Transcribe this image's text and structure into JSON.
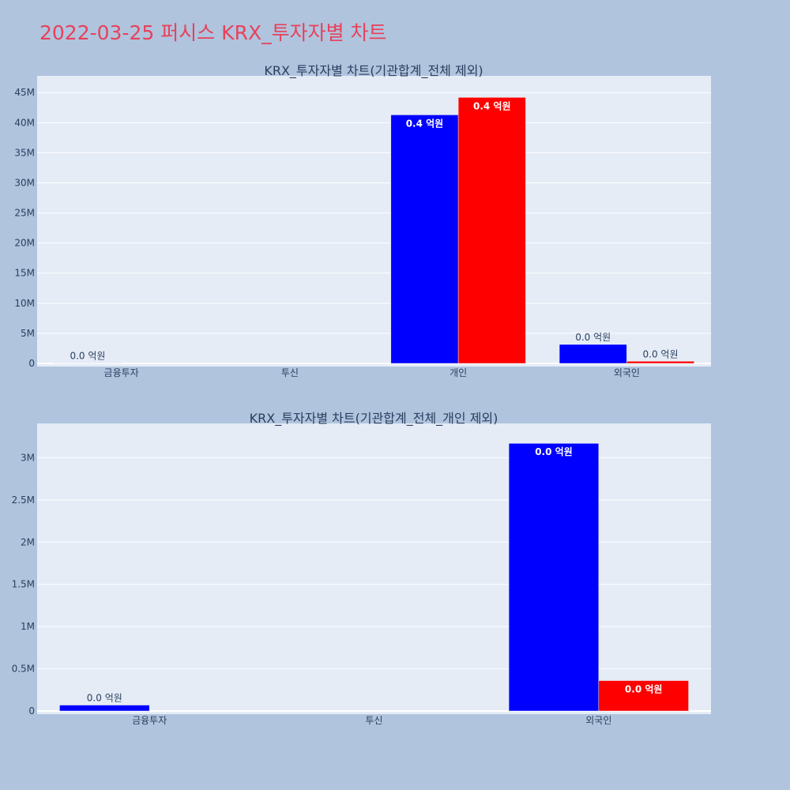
{
  "title": "2022-03-25 퍼시스 KRX_투자자별 차트",
  "colors": {
    "background": "#b0c4de",
    "plot_bg": "#e5ecf6",
    "title": "#e8415a",
    "series_a": "#0000ff",
    "series_b": "#ff0000"
  },
  "chart_data": [
    {
      "type": "bar",
      "title": "KRX_투자자별 차트(기관합계_전체 제외)",
      "categories": [
        "금융투자",
        "투신",
        "개인",
        "외국인"
      ],
      "ylim": [
        0,
        47000000
      ],
      "yticks": [
        {
          "value": 0,
          "label": "0"
        },
        {
          "value": 5000000,
          "label": "5M"
        },
        {
          "value": 10000000,
          "label": "10M"
        },
        {
          "value": 15000000,
          "label": "15M"
        },
        {
          "value": 20000000,
          "label": "20M"
        },
        {
          "value": 25000000,
          "label": "25M"
        },
        {
          "value": 30000000,
          "label": "30M"
        },
        {
          "value": 35000000,
          "label": "35M"
        },
        {
          "value": 40000000,
          "label": "40M"
        },
        {
          "value": 45000000,
          "label": "45M"
        }
      ],
      "series": [
        {
          "color": "#0000ff",
          "values": [
            0,
            null,
            41300000,
            3150000
          ],
          "labels": [
            "0.0 억원",
            null,
            "0.4 억원",
            "0.0 억원"
          ]
        },
        {
          "color": "#ff0000",
          "values": [
            null,
            null,
            44200000,
            350000
          ],
          "labels": [
            null,
            null,
            "0.4 억원",
            "0.0 억원"
          ]
        }
      ],
      "grid": true
    },
    {
      "type": "bar",
      "title": "KRX_투자자별 차트(기관합계_전체_개인 제외)",
      "categories": [
        "금융투자",
        "투신",
        "외국인"
      ],
      "ylim": [
        0,
        3350000
      ],
      "yticks": [
        {
          "value": 0,
          "label": "0"
        },
        {
          "value": 500000,
          "label": "0.5M"
        },
        {
          "value": 1000000,
          "label": "1M"
        },
        {
          "value": 1500000,
          "label": "1.5M"
        },
        {
          "value": 2000000,
          "label": "2M"
        },
        {
          "value": 2500000,
          "label": "2.5M"
        },
        {
          "value": 3000000,
          "label": "3M"
        }
      ],
      "series": [
        {
          "color": "#0000ff",
          "values": [
            70000,
            null,
            3170000
          ],
          "labels": [
            "0.0 억원",
            null,
            "0.0 억원"
          ]
        },
        {
          "color": "#ff0000",
          "values": [
            null,
            null,
            360000
          ],
          "labels": [
            null,
            null,
            "0.0 억원"
          ]
        }
      ],
      "grid": true
    }
  ]
}
